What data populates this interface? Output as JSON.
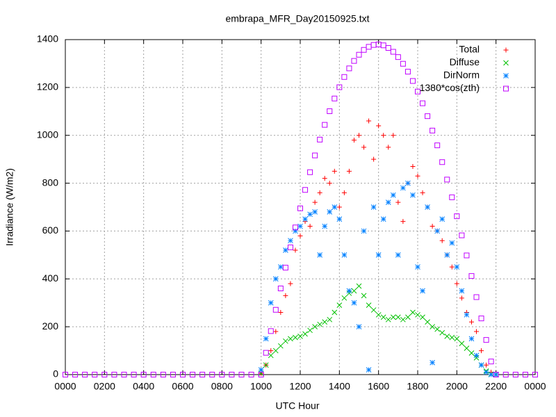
{
  "chart_data": {
    "type": "scatter",
    "title": "embrapa_MFR_Day20150925.txt",
    "xlabel": "UTC Hour",
    "ylabel": "Irradiance (W/m2)",
    "xlim": [
      0,
      24
    ],
    "ylim": [
      0,
      1400
    ],
    "xticks": [
      {
        "value": 0,
        "label": "0000"
      },
      {
        "value": 2,
        "label": "0200"
      },
      {
        "value": 4,
        "label": "0400"
      },
      {
        "value": 6,
        "label": "0600"
      },
      {
        "value": 8,
        "label": "0800"
      },
      {
        "value": 10,
        "label": "1000"
      },
      {
        "value": 12,
        "label": "1200"
      },
      {
        "value": 14,
        "label": "1400"
      },
      {
        "value": 16,
        "label": "1600"
      },
      {
        "value": 18,
        "label": "1800"
      },
      {
        "value": 20,
        "label": "2000"
      },
      {
        "value": 22,
        "label": "2200"
      },
      {
        "value": 24,
        "label": "0000"
      }
    ],
    "yticks": [
      0,
      200,
      400,
      600,
      800,
      1000,
      1200,
      1400
    ],
    "grid": true,
    "legend": "top-right",
    "series": [
      {
        "name": "Total",
        "color": "#ff0000",
        "marker": "plus",
        "x": [
          10,
          10.25,
          10.5,
          10.75,
          11,
          11.25,
          11.5,
          11.75,
          12,
          12.25,
          12.5,
          12.75,
          13,
          13.25,
          13.5,
          13.75,
          14,
          14.25,
          14.5,
          14.75,
          15,
          15.25,
          15.5,
          15.75,
          16,
          16.25,
          16.5,
          16.75,
          17,
          17.25,
          17.5,
          17.75,
          18,
          18.25,
          18.5,
          18.75,
          19,
          19.25,
          19.5,
          19.75,
          20,
          20.25,
          20.5,
          20.75,
          21,
          21.25,
          21.5,
          21.75,
          22
        ],
        "values": [
          5,
          40,
          100,
          180,
          260,
          330,
          380,
          520,
          580,
          640,
          620,
          720,
          760,
          820,
          800,
          850,
          700,
          760,
          850,
          980,
          1000,
          950,
          1060,
          900,
          1040,
          1000,
          950,
          1000,
          720,
          640,
          800,
          870,
          830,
          760,
          700,
          620,
          600,
          560,
          500,
          450,
          380,
          320,
          260,
          220,
          180,
          100,
          40,
          10,
          0
        ]
      },
      {
        "name": "Diffuse",
        "color": "#00c000",
        "marker": "cross",
        "x": [
          10,
          10.25,
          10.5,
          10.75,
          11,
          11.25,
          11.5,
          11.75,
          12,
          12.25,
          12.5,
          12.75,
          13,
          13.25,
          13.5,
          13.75,
          14,
          14.25,
          14.5,
          14.75,
          15,
          15.25,
          15.5,
          15.75,
          16,
          16.25,
          16.5,
          16.75,
          17,
          17.25,
          17.5,
          17.75,
          18,
          18.25,
          18.5,
          18.75,
          19,
          19.25,
          19.5,
          19.75,
          20,
          20.25,
          20.5,
          20.75,
          21,
          21.25,
          21.5,
          21.75,
          22
        ],
        "values": [
          5,
          40,
          80,
          100,
          120,
          140,
          150,
          155,
          160,
          170,
          185,
          200,
          210,
          220,
          230,
          260,
          290,
          320,
          340,
          350,
          370,
          330,
          290,
          270,
          250,
          240,
          230,
          240,
          240,
          230,
          240,
          260,
          250,
          240,
          220,
          200,
          190,
          175,
          160,
          155,
          150,
          130,
          110,
          90,
          70,
          40,
          15,
          2,
          0
        ]
      },
      {
        "name": "DirNorm",
        "color": "#0080ff",
        "marker": "star",
        "x": [
          10,
          10.25,
          10.5,
          10.75,
          11,
          11.25,
          11.5,
          11.75,
          12,
          12.25,
          12.5,
          12.75,
          13,
          13.25,
          13.5,
          13.75,
          14,
          14.25,
          14.5,
          14.75,
          15,
          15.25,
          15.5,
          15.75,
          16,
          16.25,
          16.5,
          16.75,
          17,
          17.25,
          17.5,
          17.75,
          18,
          18.25,
          18.5,
          18.75,
          19,
          19.25,
          19.5,
          19.75,
          20,
          20.25,
          20.5,
          20.75,
          21,
          21.25,
          21.5,
          21.75,
          22
        ],
        "values": [
          20,
          150,
          300,
          400,
          450,
          520,
          560,
          600,
          620,
          650,
          670,
          680,
          500,
          620,
          680,
          700,
          650,
          500,
          350,
          300,
          200,
          600,
          20,
          700,
          500,
          650,
          720,
          750,
          500,
          780,
          800,
          750,
          450,
          350,
          700,
          50,
          600,
          650,
          500,
          550,
          450,
          350,
          250,
          150,
          80,
          40,
          10,
          0,
          0
        ]
      },
      {
        "name": "1380*cos(zth)",
        "color": "#c000ff",
        "marker": "square",
        "x": [
          0,
          0.5,
          1,
          1.5,
          2,
          2.5,
          3,
          3.5,
          4,
          4.5,
          5,
          5.5,
          6,
          6.5,
          7,
          7.5,
          8,
          8.5,
          9,
          9.5,
          10,
          10.25,
          10.5,
          10.75,
          11,
          11.25,
          11.5,
          11.75,
          12,
          12.25,
          12.5,
          12.75,
          13,
          13.25,
          13.5,
          13.75,
          14,
          14.25,
          14.5,
          14.75,
          15,
          15.25,
          15.5,
          15.75,
          16,
          16.25,
          16.5,
          16.75,
          17,
          17.25,
          17.5,
          17.75,
          18,
          18.25,
          18.5,
          18.75,
          19,
          19.25,
          19.5,
          19.75,
          20,
          20.25,
          20.5,
          20.75,
          21,
          21.25,
          21.5,
          21.75,
          22,
          22.5,
          23,
          23.5,
          24
        ],
        "values": [
          0,
          0,
          0,
          0,
          0,
          0,
          0,
          0,
          0,
          0,
          0,
          0,
          0,
          0,
          0,
          0,
          0,
          0,
          0,
          0,
          0,
          91,
          182,
          271,
          360,
          447,
          532,
          615,
          695,
          772,
          846,
          916,
          982,
          1044,
          1101,
          1154,
          1201,
          1244,
          1280,
          1311,
          1337,
          1357,
          1370,
          1378,
          1380,
          1376,
          1365,
          1349,
          1327,
          1299,
          1266,
          1227,
          1183,
          1134,
          1080,
          1020,
          958,
          888,
          815,
          741,
          662,
          582,
          498,
          412,
          324,
          235,
          145,
          55,
          0,
          0,
          0,
          0,
          0
        ]
      }
    ]
  }
}
